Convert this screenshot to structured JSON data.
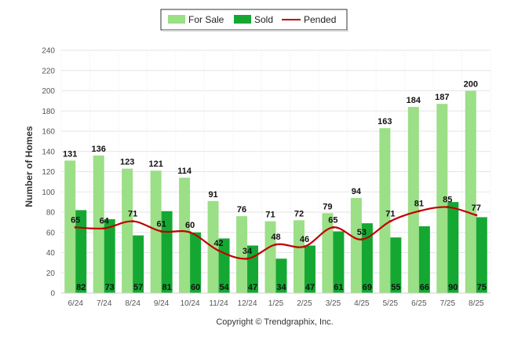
{
  "chart_data": {
    "type": "bar",
    "categories": [
      "6/24",
      "7/24",
      "8/24",
      "9/24",
      "10/24",
      "11/24",
      "12/24",
      "1/25",
      "2/25",
      "3/25",
      "4/25",
      "5/25",
      "6/25",
      "7/25",
      "8/25"
    ],
    "series": [
      {
        "name": "For Sale",
        "type": "bar",
        "color": "#9bdf86",
        "values": [
          131,
          136,
          123,
          121,
          114,
          91,
          76,
          71,
          72,
          79,
          94,
          163,
          184,
          187,
          200
        ]
      },
      {
        "name": "Sold",
        "type": "bar",
        "color": "#14a833",
        "values": [
          82,
          73,
          57,
          81,
          60,
          54,
          47,
          34,
          47,
          61,
          69,
          55,
          66,
          90,
          75
        ]
      },
      {
        "name": "Pended",
        "type": "line",
        "color": "#c00000",
        "values": [
          65,
          64,
          71,
          61,
          60,
          42,
          34,
          48,
          46,
          65,
          53,
          71,
          81,
          85,
          77
        ]
      }
    ],
    "xlabel": "",
    "ylabel": "Number of Homes",
    "ylim": [
      0,
      240
    ],
    "yticks": [
      0,
      20,
      40,
      60,
      80,
      100,
      120,
      140,
      160,
      180,
      200,
      220,
      240
    ],
    "grid": true,
    "legend_position": "top-center"
  },
  "footer": {
    "copyright": "Copyright © Trendgraphix, Inc."
  }
}
